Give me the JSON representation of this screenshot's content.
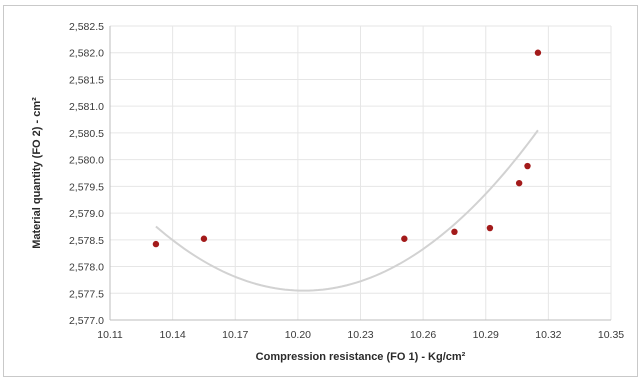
{
  "chart_data": {
    "type": "scatter",
    "title": "",
    "xlabel": "Compression resistance (FO 1) - Kg/cm²",
    "ylabel": "Material quantity (FO 2) - cm²",
    "xlim": [
      10.11,
      10.35
    ],
    "ylim": [
      2577.0,
      2582.5
    ],
    "x_ticks": [
      10.11,
      10.14,
      10.17,
      10.2,
      10.23,
      10.26,
      10.29,
      10.32,
      10.35
    ],
    "x_tick_labels": [
      "10.11",
      "10.14",
      "10.17",
      "10.20",
      "10.23",
      "10.26",
      "10.29",
      "10.32",
      "10.35"
    ],
    "y_ticks": [
      2577.0,
      2577.5,
      2578.0,
      2578.5,
      2579.0,
      2579.5,
      2580.0,
      2580.5,
      2581.0,
      2581.5,
      2582.0,
      2582.5
    ],
    "y_tick_labels": [
      "2,577.0",
      "2,577.5",
      "2,578.0",
      "2,578.5",
      "2,579.0",
      "2,579.5",
      "2,580.0",
      "2,580.5",
      "2,581.0",
      "2,581.5",
      "2,582.0",
      "2,582.5"
    ],
    "grid": true,
    "series": [
      {
        "color": "#a31a1a",
        "points": [
          {
            "x": 10.132,
            "y": 2578.42
          },
          {
            "x": 10.155,
            "y": 2578.52
          },
          {
            "x": 10.251,
            "y": 2578.52
          },
          {
            "x": 10.275,
            "y": 2578.65
          },
          {
            "x": 10.292,
            "y": 2578.72
          },
          {
            "x": 10.306,
            "y": 2579.56
          },
          {
            "x": 10.31,
            "y": 2579.88
          },
          {
            "x": 10.315,
            "y": 2582.0
          }
        ]
      }
    ],
    "trendline": {
      "type": "polynomial",
      "order": 2,
      "color": "#d2d2d2",
      "x_range": [
        10.132,
        10.315
      ],
      "points": [
        {
          "x": 10.132,
          "y": 2578.75
        },
        {
          "x": 10.205,
          "y": 2577.55
        },
        {
          "x": 10.315,
          "y": 2580.55
        }
      ]
    }
  }
}
